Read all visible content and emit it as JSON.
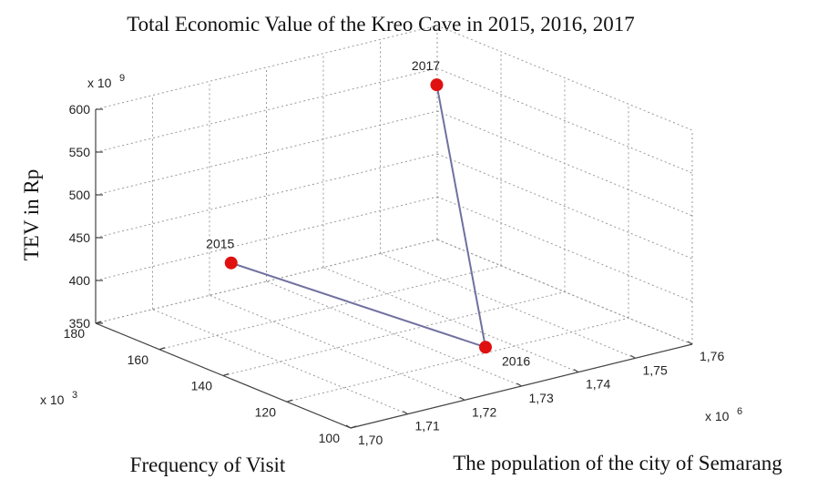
{
  "chart_data": {
    "type": "line3d",
    "title": "Total Economic Value of the Kreo Cave in 2015, 2016, 2017",
    "xlabel": "The population of the city of Semarang",
    "ylabel": "Frequency of Visit",
    "zlabel": "TEV in Rp",
    "xscale": {
      "base": "x 10",
      "exp": "6"
    },
    "yscale": {
      "base": "x 10",
      "exp": "3"
    },
    "zscale": {
      "base": "x 10",
      "exp": "9"
    },
    "series": [
      {
        "labels": [
          "2015",
          "2016",
          "2017"
        ],
        "x": [
          1.707,
          1.736,
          1.742
        ],
        "y": [
          150,
          122,
          148
        ],
        "z": [
          455,
          352,
          609
        ],
        "color": "#7070a0",
        "marker_color": "#e01010"
      }
    ],
    "xlim": [
      1.7,
      1.76
    ],
    "xticks": [
      {
        "value": 1.7,
        "label": "1,70"
      },
      {
        "value": 1.71,
        "label": "1,71"
      },
      {
        "value": 1.72,
        "label": "1,72"
      },
      {
        "value": 1.73,
        "label": "1,73"
      },
      {
        "value": 1.74,
        "label": "1,74"
      },
      {
        "value": 1.75,
        "label": "1,75"
      },
      {
        "value": 1.76,
        "label": "1,76"
      }
    ],
    "ylim": [
      100,
      180
    ],
    "yticks": [
      100,
      120,
      140,
      160,
      180
    ],
    "zlim": [
      350,
      600
    ],
    "zticks": [
      350,
      400,
      450,
      500,
      550,
      600
    ],
    "grid": true
  }
}
